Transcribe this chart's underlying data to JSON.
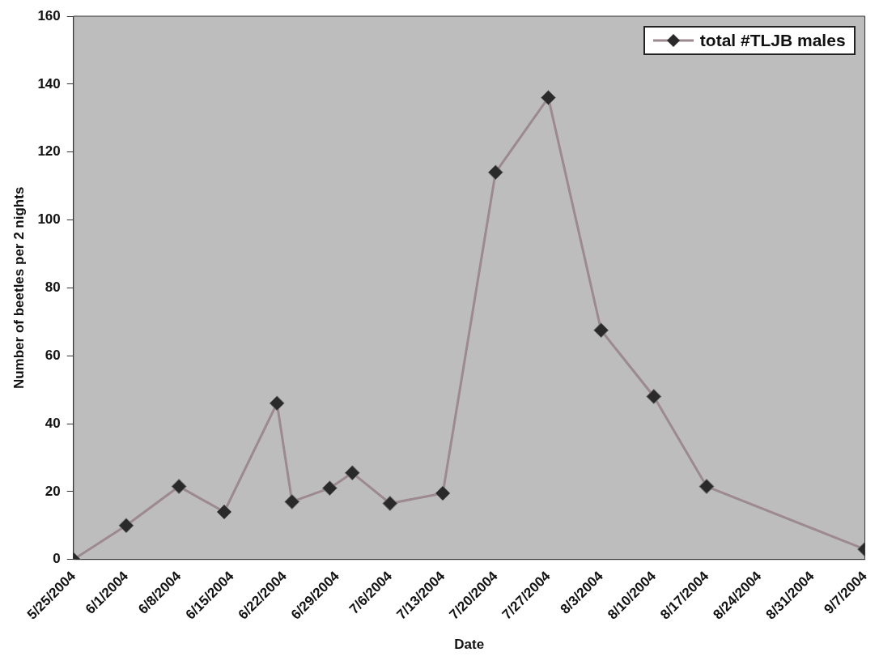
{
  "chart_data": {
    "type": "line",
    "xlabel": "Date",
    "ylabel": "Number of beetles per 2 nights",
    "x": [
      "2004-05-25",
      "2004-06-01",
      "2004-06-08",
      "2004-06-14",
      "2004-06-21",
      "2004-06-23",
      "2004-06-28",
      "2004-07-01",
      "2004-07-06",
      "2004-07-13",
      "2004-07-20",
      "2004-07-27",
      "2004-08-03",
      "2004-08-10",
      "2004-08-17",
      "2004-09-07"
    ],
    "series": [
      {
        "name": "total #TLJB males",
        "color": "#9c8a90",
        "values": [
          0,
          10,
          21.5,
          14,
          46,
          17,
          21,
          25.5,
          16.5,
          19.5,
          114,
          136,
          67.5,
          48,
          21.5,
          3
        ]
      }
    ],
    "xlim": [
      "2004-05-25",
      "2004-09-07"
    ],
    "xticks": [
      {
        "value": "2004-05-25",
        "label": "5/25/2004"
      },
      {
        "value": "2004-06-01",
        "label": "6/1/2004"
      },
      {
        "value": "2004-06-08",
        "label": "6/8/2004"
      },
      {
        "value": "2004-06-15",
        "label": "6/15/2004"
      },
      {
        "value": "2004-06-22",
        "label": "6/22/2004"
      },
      {
        "value": "2004-06-29",
        "label": "6/29/2004"
      },
      {
        "value": "2004-07-06",
        "label": "7/6/2004"
      },
      {
        "value": "2004-07-13",
        "label": "7/13/2004"
      },
      {
        "value": "2004-07-20",
        "label": "7/20/2004"
      },
      {
        "value": "2004-07-27",
        "label": "7/27/2004"
      },
      {
        "value": "2004-08-03",
        "label": "8/3/2004"
      },
      {
        "value": "2004-08-10",
        "label": "8/10/2004"
      },
      {
        "value": "2004-08-17",
        "label": "8/17/2004"
      },
      {
        "value": "2004-08-24",
        "label": "8/24/2004"
      },
      {
        "value": "2004-08-31",
        "label": "8/31/2004"
      },
      {
        "value": "2004-09-07",
        "label": "9/7/2004"
      }
    ],
    "ylim": [
      0,
      160
    ],
    "yticks": [
      0,
      20,
      40,
      60,
      80,
      100,
      120,
      140,
      160
    ],
    "grid": false,
    "legend": "top right",
    "marker": "diamond",
    "line_style": "solid"
  }
}
